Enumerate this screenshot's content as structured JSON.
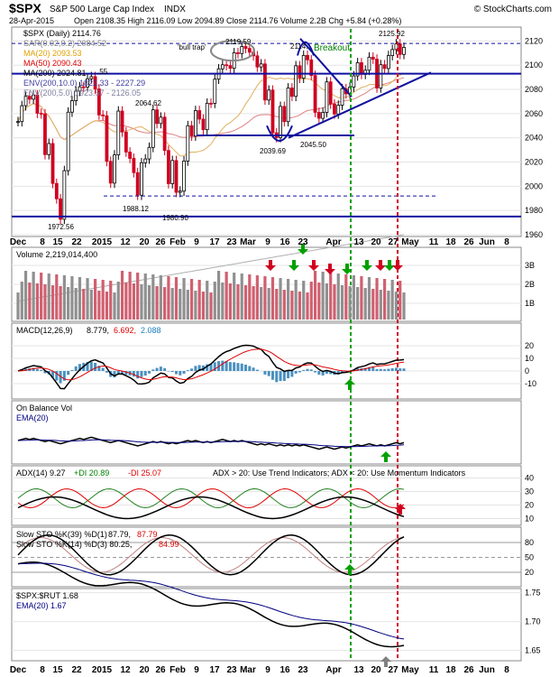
{
  "header": {
    "symbol": "$SPX",
    "name": "S&P 500 Large Cap Index",
    "exchange": "INDX",
    "watermark": "© StockCharts.com",
    "date": "28-Apr-2015",
    "ohlc": "Open 2108.35  High 2116.09  Low 2094.89  Close 2114.76  Volume 2.2B  Chg +5.84 (+0.28%)"
  },
  "price_panel": {
    "legend": [
      {
        "text": "$SPX (Daily) 2114.76",
        "color": "#000000"
      },
      {
        "text": "SAR(0.02,0.2) 2084.52",
        "color": "#7f7f7f"
      },
      {
        "text": "MA(20) 2093.53",
        "color": "#e0a000"
      },
      {
        "text": "MA(50) 2090.43",
        "color": "#e00000"
      },
      {
        "text": "MA(200) 2024.81",
        "color": "#000000"
      },
      {
        "text": "ENV(200,10.0) 1822.33 - 2227.29",
        "color": "#4040a0"
      },
      {
        "text": "ENV(200,5.0) 1923.57 - 2126.05",
        "color": "#7f7f9f"
      }
    ],
    "annotations": [
      "'bull trap'",
      "Breakout",
      "2119.59",
      "2114.",
      "2125.92",
      "2064.62",
      "2039.69",
      "2045.50",
      "1988.12",
      "1980.90",
      "1972.56",
      ".55"
    ]
  },
  "volume_panel": {
    "label": "Volume 2,219,014,400"
  },
  "macd_panel": {
    "label": "MACD(12,26,9)",
    "v1": "8.779,",
    "v2": "6.692,",
    "v3": "2.088"
  },
  "obv_panel": {
    "label": "On Balance Vol",
    "ema": "EMA(20)"
  },
  "adx_panel": {
    "label": "ADX(14) 9.27",
    "pdi": "+DI 20.89",
    "mdi": "-DI 25.07",
    "note": "ADX > 20: Use Trend Indicators; ADX < 20: Use Momentum Indicators"
  },
  "sto_panel": {
    "label1": "Slow STO %K(39) %D(1)",
    "l1v1": "87.79,",
    "l1v2": "87.79",
    "label2": "Slow STO %K(14) %D(3) 80.25,",
    "l2v": "84.99"
  },
  "ratio_panel": {
    "label": "$SPX:$RUT 1.68",
    "ema": "EMA(20) 1.67"
  },
  "x_ticks": [
    "Dec",
    "8",
    "15",
    "22",
    "2015",
    "12",
    "20",
    "26",
    "Feb",
    "9",
    "17",
    "23",
    "Mar",
    "9",
    "16",
    "23",
    "Apr",
    "13",
    "20",
    "27",
    "May",
    "11",
    "18",
    "26",
    "Jun",
    "8"
  ],
  "chart_data": {
    "type": "candlestick",
    "x_start": "2014-12-01",
    "x_end": "2015-06-12",
    "y_axis": {
      "min": 1960,
      "max": 2130,
      "ticks": [
        1960,
        1980,
        2000,
        2020,
        2040,
        2060,
        2080,
        2100,
        2120
      ]
    },
    "closes": [
      2053.44,
      2066.55,
      2074.33,
      2071.92,
      2075.37,
      2060.31,
      2059.82,
      2026.14,
      2035.33,
      2002.33,
      1989.63,
      1972.74,
      2012.89,
      2061.23,
      2070.65,
      2078.54,
      2082.17,
      2081.88,
      2088.77,
      2090.57,
      2080.35,
      2058.9,
      2058.2,
      2020.58,
      2002.61,
      2025.9,
      2062.14,
      2044.81,
      2028.26,
      2023.03,
      2011.27,
      1992.67,
      2019.42,
      2022.55,
      2032.12,
      2063.15,
      2051.82,
      2057.09,
      2029.55,
      2002.16,
      2021.25,
      1994.99,
      1995.99,
      2020.85,
      2050.03,
      2041.51,
      2062.52,
      2055.47,
      2046.74,
      2068.59,
      2068.53,
      2088.48,
      2096.99,
      2100.34,
      2099.68,
      2097.45,
      2110.3,
      2109.66,
      2115.48,
      2113.86,
      2110.74,
      2107.78,
      2098.53,
      2101.04,
      2071.26,
      2079.43,
      2044.16,
      2040.24,
      2065.95,
      2053.4,
      2081.19,
      2074.28,
      2099.5,
      2089.27,
      2108.1,
      2104.42,
      2091.5,
      2061.05,
      2056.15,
      2061.02,
      2086.24,
      2067.89,
      2059.69,
      2066.96,
      2080.62,
      2076.33,
      2081.9,
      2091.18,
      2102.06,
      2092.43,
      2095.84,
      2106.63,
      2104.99,
      2081.18,
      2100.4,
      2097.29,
      2107.96,
      2112.93,
      2117.69,
      2108.92,
      2114.76
    ],
    "volume_axis": {
      "ticks": [
        "1B",
        "2B",
        "3B"
      ]
    },
    "macd_axis": {
      "ticks": [
        -10,
        0,
        10,
        20
      ]
    },
    "adx_axis": {
      "ticks": [
        10,
        20,
        30,
        40
      ]
    },
    "sto_axis": {
      "ticks": [
        20,
        50,
        80
      ]
    },
    "ratio_axis": {
      "ticks": [
        1.65,
        1.7,
        1.75
      ]
    }
  }
}
